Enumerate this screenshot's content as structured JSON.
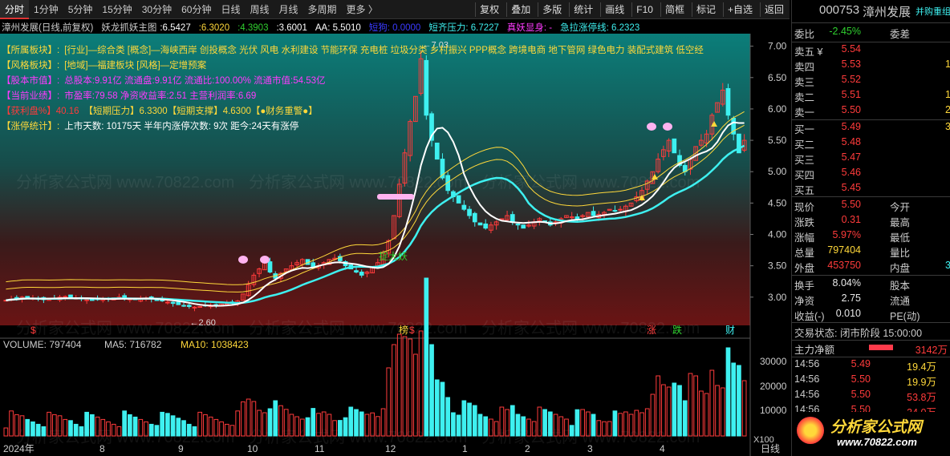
{
  "toolbar": {
    "periods": [
      "分时",
      "1分钟",
      "5分钟",
      "15分钟",
      "30分钟",
      "60分钟",
      "日线",
      "周线",
      "月线",
      "多周期",
      "更多 〉"
    ],
    "active_period": "分时",
    "tools": [
      "复权",
      "叠加",
      "多版",
      "统计",
      "画线",
      "F10",
      "简框",
      "标记",
      "+自选",
      "返回"
    ]
  },
  "stock": {
    "code": "000753",
    "name": "漳州发展",
    "header_link": "并购重组"
  },
  "chart_header": {
    "title": "漳州发展(日线,前复权)",
    "indicator": "妖龙抓妖主图",
    "values": [
      {
        "text": ":6.5427",
        "color": "#ffffff"
      },
      {
        "text": ":6.3020",
        "color": "#ffd83a"
      },
      {
        "text": ":4.3903",
        "color": "#2fd02f"
      },
      {
        "text": ":3.6001",
        "color": "#ffffff"
      },
      {
        "text": "AA: 5.5010",
        "color": "#ffffff"
      },
      {
        "text": "短狗: 0.0000",
        "color": "#3a3aff"
      },
      {
        "text": "短齐压力: 6.7227",
        "color": "#3ef0f0"
      },
      {
        "text": "真妖显身: -",
        "color": "#ff3bff"
      },
      {
        "text": "急拉涨停线: 6.2323",
        "color": "#3ef0f0"
      }
    ]
  },
  "info_lines": [
    {
      "label": "【所属板块】:",
      "text": "[行业]—综合类 [概念]—海峡西岸 创投概念 光伏 风电 水利建设 节能环保 充电桩 垃圾分类 乡村振兴 PPP概念 跨境电商 地下管网 绿色电力 装配式建筑 低空经",
      "lcolor": "#ffd83a",
      "tcolor": "#ffd83a"
    },
    {
      "label": "【风格板块】:",
      "text": "[地域]—福建板块 [风格]—定增预案",
      "lcolor": "#ffd83a",
      "tcolor": "#ffd83a"
    },
    {
      "label": "【股本市值】:",
      "text": "总股本:9.91亿 流通盘:9.91亿 流通比:100.00% 流通市值:54.53亿",
      "lcolor": "#ff3bff",
      "tcolor": "#ff3bff"
    },
    {
      "label": "【当前业绩】:",
      "text": "市盈率:79.58 净资收益率:2.51 主营利润率:6.69",
      "lcolor": "#ff3bff",
      "tcolor": "#ff3bff"
    },
    {
      "label": "【获利盘%】40.16",
      "text": "【短期压力】6.3300【短期支撑】4.6300【●财务重警●】",
      "lcolor": "#ff3b3b",
      "tcolor": "#ffd83a"
    },
    {
      "label": "【涨停统计】:",
      "text": "上市天数: 10175天 半年内涨停次数: 9次 距今:24天有涨停",
      "lcolor": "#ffd83a",
      "tcolor": "#ffffff"
    }
  ],
  "chart_labels": {
    "low_label": "←2.60",
    "high_label": "←7.03",
    "catch": "捉大妖",
    "marks": [
      "$",
      "榜",
      "$",
      "涨",
      "跌",
      "财"
    ]
  },
  "volume": {
    "label": "VOLUME: 797404",
    "ma5": "MA5: 716782",
    "ma10": "MA10: 1038423",
    "unit": "X100",
    "axis": [
      "30000",
      "20000",
      "10000"
    ]
  },
  "price_axis": [
    "7.00",
    "6.50",
    "6.00",
    "5.50",
    "5.00",
    "4.50",
    "4.00",
    "3.50",
    "3.00"
  ],
  "time_axis": [
    "2024年",
    "8",
    "9",
    "10",
    "11",
    "12",
    "1",
    "2",
    "3",
    "4"
  ],
  "bottom_right": "日线",
  "quote": {
    "wb": {
      "label": "委比",
      "value": "-2.45%",
      "label2": "委差"
    },
    "sells": [
      {
        "label": "卖五 ¥",
        "price": "5.54",
        "vol": ""
      },
      {
        "label": "卖四",
        "price": "5.53",
        "vol": "1"
      },
      {
        "label": "卖三",
        "price": "5.52",
        "vol": ""
      },
      {
        "label": "卖二",
        "price": "5.51",
        "vol": "1"
      },
      {
        "label": "卖一",
        "price": "5.50",
        "vol": "2"
      }
    ],
    "buys": [
      {
        "label": "买一",
        "price": "5.49",
        "vol": "3"
      },
      {
        "label": "买二",
        "price": "5.48",
        "vol": ""
      },
      {
        "label": "买三",
        "price": "5.47",
        "vol": ""
      },
      {
        "label": "买四",
        "price": "5.46",
        "vol": ""
      },
      {
        "label": "买五",
        "price": "5.45",
        "vol": ""
      }
    ],
    "stats": [
      {
        "l1": "现价",
        "v1": "5.50",
        "c1": "red",
        "l2": "今开"
      },
      {
        "l1": "涨跌",
        "v1": "0.31",
        "c1": "red",
        "l2": "最高"
      },
      {
        "l1": "涨幅",
        "v1": "5.97%",
        "c1": "red",
        "l2": "最低"
      },
      {
        "l1": "总量",
        "v1": "797404",
        "c1": "yel",
        "l2": "量比"
      },
      {
        "l1": "外盘",
        "v1": "453750",
        "c1": "red",
        "l2": "内盘",
        "v2": "3"
      }
    ],
    "stats2": [
      {
        "l1": "换手",
        "v1": "8.04%",
        "c1": "wht",
        "l2": "股本"
      },
      {
        "l1": "净资",
        "v1": "2.75",
        "c1": "wht",
        "l2": "流通"
      },
      {
        "l1": "收益(-)",
        "v1": "0.010",
        "c1": "wht",
        "l2": "PE(动)"
      }
    ],
    "trade_state": "交易状态: 闭市阶段 15:00:00",
    "main_flow": {
      "label": "主力净额",
      "value": "3142万"
    },
    "ticks": [
      {
        "time": "14:56",
        "price": "5.49",
        "vol": "19.4万",
        "pc": "red",
        "vc": "yel"
      },
      {
        "time": "14:56",
        "price": "5.50",
        "vol": "19.9万",
        "pc": "red",
        "vc": "yel"
      },
      {
        "time": "14:56",
        "price": "5.50",
        "vol": "53.8万",
        "pc": "red",
        "vc": "red"
      },
      {
        "time": "14:56",
        "price": "5.50",
        "vol": "34.0万",
        "pc": "red",
        "vc": "red"
      }
    ]
  },
  "watermark": {
    "brand": "分析家公式网",
    "url": "www.70822.com"
  },
  "colors": {
    "up": "#ff3b3b",
    "down": "#3ef0f0",
    "ma_cyan": "#3ef0f0",
    "ma_white": "#ffffff",
    "band": "#ffd83a"
  },
  "chart_data": {
    "type": "candlestick",
    "y_range": [
      2.55,
      7.2
    ],
    "low": 2.6,
    "high": 7.03,
    "closes": [
      2.95,
      2.97,
      2.98,
      3.0,
      2.99,
      2.98,
      2.97,
      2.96,
      2.97,
      2.98,
      3.0,
      3.01,
      2.99,
      2.98,
      2.97,
      2.96,
      2.95,
      2.96,
      2.97,
      2.98,
      2.99,
      3.0,
      2.98,
      2.97,
      2.96,
      2.97,
      2.98,
      2.97,
      2.95,
      2.94,
      2.92,
      2.9,
      2.88,
      2.86,
      2.85,
      2.84,
      2.85,
      2.86,
      2.87,
      2.88,
      2.89,
      2.9,
      2.92,
      2.94,
      3.05,
      3.2,
      3.35,
      3.45,
      3.55,
      3.4,
      3.3,
      3.38,
      3.45,
      3.5,
      3.55,
      3.6,
      3.52,
      3.48,
      3.5,
      3.55,
      3.6,
      3.62,
      3.58,
      3.5,
      3.45,
      3.4,
      3.35,
      3.4,
      3.48,
      3.55,
      3.7,
      3.9,
      4.3,
      4.8,
      5.3,
      5.8,
      6.2,
      6.8,
      5.9,
      5.5,
      5.2,
      4.9,
      4.7,
      4.6,
      4.5,
      4.4,
      4.3,
      4.2,
      4.15,
      4.1,
      4.15,
      4.2,
      4.25,
      4.3,
      4.2,
      4.15,
      4.1,
      4.15,
      4.2,
      4.25,
      4.2,
      4.15,
      4.2,
      4.25,
      4.3,
      4.28,
      4.25,
      4.3,
      4.35,
      4.3,
      4.32,
      4.35,
      4.4,
      4.38,
      4.4,
      4.45,
      4.5,
      4.6,
      4.7,
      4.85,
      5.0,
      5.2,
      5.35,
      5.5,
      5.3,
      5.1,
      5.0,
      5.2,
      5.4,
      5.5,
      5.6,
      5.9,
      6.1,
      6.3,
      5.9,
      5.6,
      5.3,
      5.5
    ]
  }
}
